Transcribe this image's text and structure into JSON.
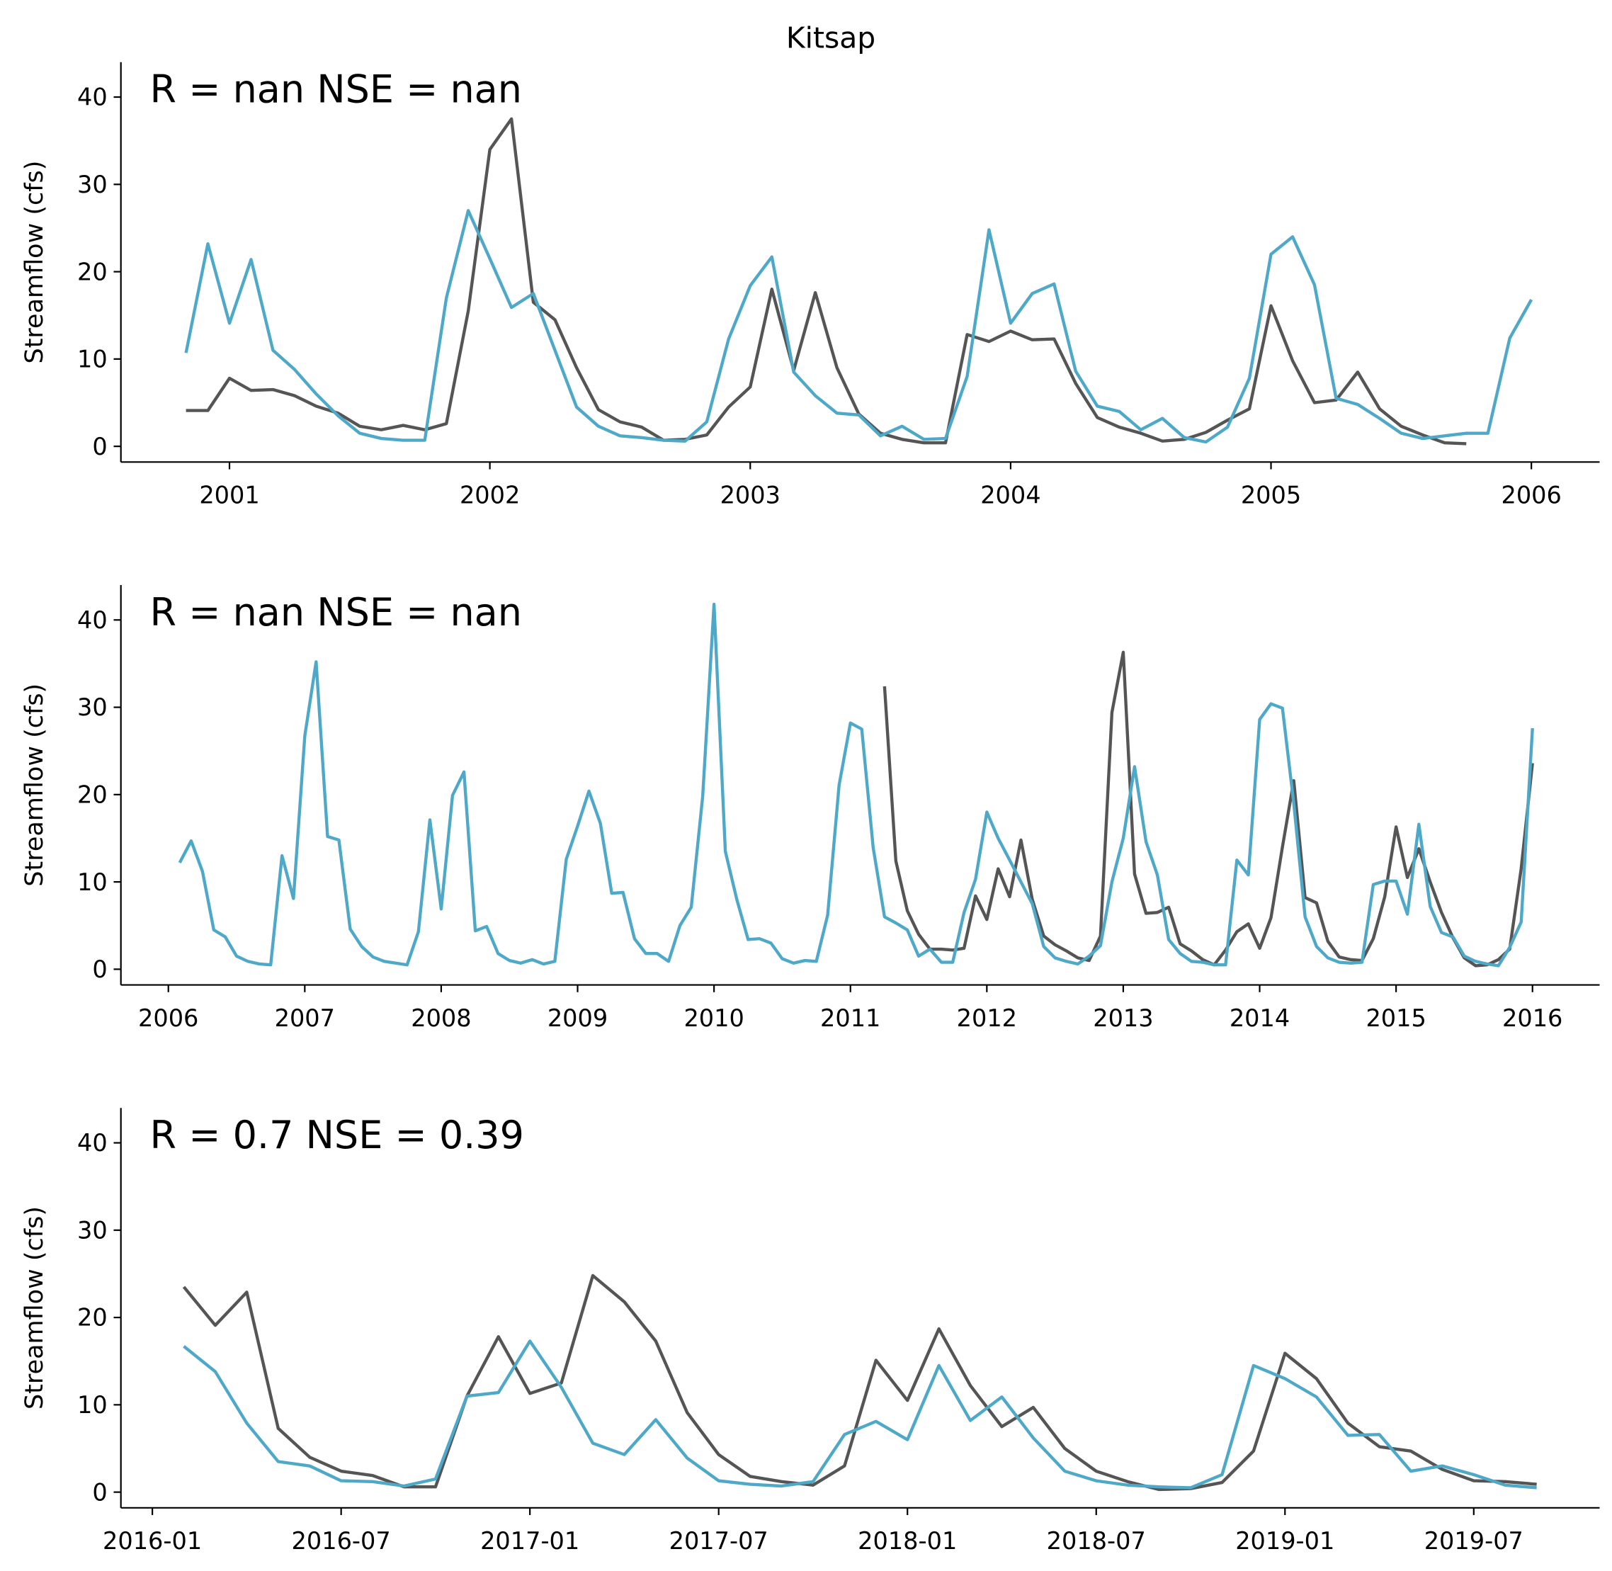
{
  "title": "Kitsap",
  "chart_data": [
    {
      "type": "line",
      "annotation": "R = nan  NSE = nan",
      "ylabel": "Streamflow (cfs)",
      "x": [
        2000.833,
        2000.917,
        2001,
        2001.083,
        2001.167,
        2001.25,
        2001.333,
        2001.417,
        2001.5,
        2001.583,
        2001.667,
        2001.75,
        2001.833,
        2001.917,
        2002,
        2002.083,
        2002.167,
        2002.25,
        2002.333,
        2002.417,
        2002.5,
        2002.583,
        2002.667,
        2002.75,
        2002.833,
        2002.917,
        2003,
        2003.083,
        2003.167,
        2003.25,
        2003.333,
        2003.417,
        2003.5,
        2003.583,
        2003.667,
        2003.75,
        2003.833,
        2003.917,
        2004,
        2004.083,
        2004.167,
        2004.25,
        2004.333,
        2004.417,
        2004.5,
        2004.583,
        2004.667,
        2004.75,
        2004.833,
        2004.917,
        2005,
        2005.083,
        2005.167,
        2005.25,
        2005.333,
        2005.417,
        2005.5,
        2005.583,
        2005.667,
        2005.75,
        2005.833,
        2005.917,
        2006
      ],
      "series": [
        {
          "color": "#555555",
          "values": [
            4.1,
            4.1,
            7.8,
            6.4,
            6.5,
            5.8,
            4.6,
            3.8,
            2.3,
            1.9,
            2.4,
            1.9,
            2.6,
            15.5,
            34,
            37.5,
            16.5,
            14.5,
            9,
            4.2,
            2.8,
            2.2,
            0.7,
            0.8,
            1.3,
            4.5,
            6.8,
            18,
            8.7,
            17.6,
            9,
            3.7,
            1.5,
            0.8,
            0.4,
            0.4,
            12.8,
            12,
            13.2,
            12.2,
            12.3,
            7.2,
            3.3,
            2.2,
            1.5,
            0.6,
            0.8,
            1.6,
            3,
            4.3,
            16.1,
            9.8,
            5,
            5.3,
            8.5,
            4.3,
            2.3,
            1.3,
            0.4,
            0.3,
            null,
            null,
            null
          ]
        },
        {
          "color": "#4ea8c8",
          "values": [
            10.7,
            23.2,
            14.1,
            21.4,
            11,
            8.8,
            6,
            3.5,
            1.5,
            0.9,
            0.7,
            0.7,
            17,
            27,
            21.5,
            15.9,
            17.5,
            11,
            4.5,
            2.3,
            1.2,
            1,
            0.7,
            0.6,
            2.8,
            12.3,
            18.4,
            21.7,
            8.5,
            5.8,
            3.8,
            3.6,
            1.2,
            2.3,
            0.8,
            0.9,
            8,
            24.8,
            14.1,
            17.5,
            18.6,
            8.6,
            4.6,
            4,
            1.9,
            3.2,
            1,
            0.5,
            2.2,
            7.8,
            22,
            24,
            18.5,
            5.5,
            4.8,
            3.2,
            1.5,
            0.9,
            1.2,
            1.5,
            1.5,
            12.4,
            16.8
          ]
        }
      ],
      "xlim": [
        2000.583,
        2006.262
      ],
      "xticks": [
        2001,
        2002,
        2003,
        2004,
        2005,
        2006
      ],
      "ylim": [
        -1.8,
        44
      ],
      "yticks": [
        0,
        10,
        20,
        30,
        40
      ]
    },
    {
      "type": "line",
      "annotation": "R = nan  NSE = nan",
      "ylabel": "Streamflow (cfs)",
      "x": [
        2006.083,
        2006.167,
        2006.25,
        2006.333,
        2006.417,
        2006.5,
        2006.583,
        2006.667,
        2006.75,
        2006.833,
        2006.917,
        2007,
        2007.083,
        2007.167,
        2007.25,
        2007.333,
        2007.417,
        2007.5,
        2007.583,
        2007.667,
        2007.75,
        2007.833,
        2007.917,
        2008,
        2008.083,
        2008.167,
        2008.25,
        2008.333,
        2008.417,
        2008.5,
        2008.583,
        2008.667,
        2008.75,
        2008.833,
        2008.917,
        2009,
        2009.083,
        2009.167,
        2009.25,
        2009.333,
        2009.417,
        2009.5,
        2009.583,
        2009.667,
        2009.75,
        2009.833,
        2009.917,
        2010,
        2010.083,
        2010.167,
        2010.25,
        2010.333,
        2010.417,
        2010.5,
        2010.583,
        2010.667,
        2010.75,
        2010.833,
        2010.917,
        2011,
        2011.083,
        2011.167,
        2011.25,
        2011.333,
        2011.417,
        2011.5,
        2011.583,
        2011.667,
        2011.75,
        2011.833,
        2011.917,
        2012,
        2012.083,
        2012.167,
        2012.25,
        2012.333,
        2012.417,
        2012.5,
        2012.583,
        2012.667,
        2012.75,
        2012.833,
        2012.917,
        2013,
        2013.083,
        2013.167,
        2013.25,
        2013.333,
        2013.417,
        2013.5,
        2013.583,
        2013.667,
        2013.75,
        2013.833,
        2013.917,
        2014,
        2014.083,
        2014.167,
        2014.25,
        2014.333,
        2014.417,
        2014.5,
        2014.583,
        2014.667,
        2014.75,
        2014.833,
        2014.917,
        2015,
        2015.083,
        2015.167,
        2015.25,
        2015.333,
        2015.417,
        2015.5,
        2015.583,
        2015.667,
        2015.75,
        2015.833,
        2015.917,
        2016
      ],
      "series": [
        {
          "color": "#555555",
          "values": [
            null,
            null,
            null,
            null,
            null,
            null,
            null,
            null,
            null,
            null,
            null,
            null,
            null,
            null,
            null,
            null,
            null,
            null,
            null,
            null,
            null,
            null,
            null,
            null,
            null,
            null,
            null,
            null,
            null,
            null,
            null,
            null,
            null,
            null,
            null,
            null,
            null,
            null,
            null,
            null,
            null,
            null,
            null,
            null,
            null,
            null,
            null,
            null,
            null,
            null,
            null,
            null,
            null,
            null,
            null,
            null,
            null,
            null,
            null,
            null,
            null,
            null,
            32.4,
            12.4,
            6.7,
            4,
            2.3,
            2.3,
            2.2,
            2.4,
            8.4,
            5.7,
            11.5,
            8.3,
            14.8,
            8,
            3.8,
            2.8,
            2.1,
            1.3,
            1,
            3.8,
            29.4,
            36.3,
            10.9,
            6.4,
            6.5,
            7.1,
            2.9,
            2.1,
            1.1,
            0.5,
            2.2,
            4.3,
            5.2,
            2.4,
            5.9,
            14,
            21.6,
            8.2,
            7.6,
            3.2,
            1.4,
            1.1,
            1,
            3.5,
            8.3,
            16.3,
            10.5,
            13.8,
            10,
            6.5,
            3.6,
            1.3,
            0.4,
            0.5,
            1.1,
            2.3,
            11.5,
            23.6
          ]
        },
        {
          "color": "#4ea8c8",
          "values": [
            12.2,
            14.7,
            11.2,
            4.5,
            3.7,
            1.5,
            0.9,
            0.6,
            0.5,
            13,
            8.1,
            26.7,
            35.2,
            15.2,
            14.8,
            4.6,
            2.6,
            1.4,
            0.9,
            0.7,
            0.5,
            4.3,
            17.1,
            6.9,
            19.9,
            22.6,
            4.4,
            4.9,
            1.8,
            1,
            0.7,
            1.1,
            0.6,
            0.9,
            12.6,
            16.4,
            20.4,
            16.7,
            8.7,
            8.8,
            3.5,
            1.8,
            1.8,
            0.9,
            5,
            7.1,
            19.8,
            41.8,
            13.5,
            8,
            3.4,
            3.5,
            3,
            1.2,
            0.7,
            1,
            0.9,
            6.2,
            21.1,
            28.2,
            27.5,
            13.9,
            6,
            5.3,
            4.5,
            1.5,
            2.3,
            0.8,
            0.8,
            6.5,
            10.3,
            18,
            15,
            12.5,
            10,
            7.5,
            2.6,
            1.3,
            0.9,
            0.6,
            1.5,
            2.7,
            10,
            15,
            23.2,
            14.6,
            10.8,
            3.4,
            1.8,
            0.9,
            0.8,
            0.5,
            0.5,
            12.5,
            10.8,
            28.6,
            30.4,
            29.9,
            19,
            6,
            2.6,
            1.3,
            0.8,
            0.7,
            0.8,
            9.7,
            10.1,
            10.1,
            6.3,
            16.6,
            7.2,
            4.2,
            3.7,
            1.5,
            0.9,
            0.6,
            0.4,
            2.5,
            5.4,
            27.6
          ]
        }
      ],
      "xlim": [
        2005.652,
        2016.492
      ],
      "xticks": [
        2006,
        2007,
        2008,
        2009,
        2010,
        2011,
        2012,
        2013,
        2014,
        2015,
        2016
      ],
      "ylim": [
        -1.8,
        44
      ],
      "yticks": [
        0,
        10,
        20,
        30,
        40
      ]
    },
    {
      "type": "line",
      "annotation": "R = 0.7  NSE = 0.39",
      "ylabel": "Streamflow (cfs)",
      "x": [
        "2016-02",
        "2016-03",
        "2016-04",
        "2016-05",
        "2016-06",
        "2016-07",
        "2016-08",
        "2016-09",
        "2016-10",
        "2016-11",
        "2016-12",
        "2017-01",
        "2017-02",
        "2017-03",
        "2017-04",
        "2017-05",
        "2017-06",
        "2017-07",
        "2017-08",
        "2017-09",
        "2017-10",
        "2017-11",
        "2017-12",
        "2018-01",
        "2018-02",
        "2018-03",
        "2018-04",
        "2018-05",
        "2018-06",
        "2018-07",
        "2018-08",
        "2018-09",
        "2018-10",
        "2018-11",
        "2018-12",
        "2019-01",
        "2019-02",
        "2019-03",
        "2019-04",
        "2019-05",
        "2019-06",
        "2019-07",
        "2019-08",
        "2019-09"
      ],
      "series": [
        {
          "color": "#555555",
          "values": [
            23.5,
            19.1,
            22.9,
            7.3,
            4,
            2.4,
            1.9,
            0.6,
            0.6,
            11,
            17.8,
            11.3,
            12.5,
            24.8,
            21.8,
            17.3,
            9.1,
            4.3,
            1.8,
            1.2,
            0.8,
            3,
            15.1,
            10.5,
            18.7,
            12.2,
            7.5,
            9.7,
            5,
            2.4,
            1.2,
            0.3,
            0.4,
            1.1,
            4.7,
            15.9,
            13,
            7.9,
            5.2,
            4.7,
            2.6,
            1.3,
            1.2,
            0.9
          ]
        },
        {
          "color": "#4ea8c8",
          "values": [
            16.7,
            13.8,
            7.9,
            3.5,
            3,
            1.3,
            1.2,
            0.7,
            1.5,
            11,
            11.4,
            17.3,
            12,
            5.6,
            4.3,
            8.3,
            3.9,
            1.3,
            0.9,
            0.7,
            1.2,
            6.6,
            8.1,
            6,
            14.5,
            8.2,
            10.9,
            6.2,
            2.4,
            1.3,
            0.8,
            0.6,
            0.5,
            2,
            14.5,
            13,
            10.9,
            6.5,
            6.6,
            2.4,
            3,
            2,
            0.8,
            0.5
          ]
        }
      ],
      "xlim": [
        "2015-12",
        "2019-11"
      ],
      "xticks": [
        "2016-01",
        "2016-07",
        "2017-01",
        "2017-07",
        "2018-01",
        "2018-07",
        "2019-01",
        "2019-07"
      ],
      "ylim": [
        -1.8,
        44
      ],
      "yticks": [
        0,
        10,
        20,
        30,
        40
      ]
    }
  ]
}
